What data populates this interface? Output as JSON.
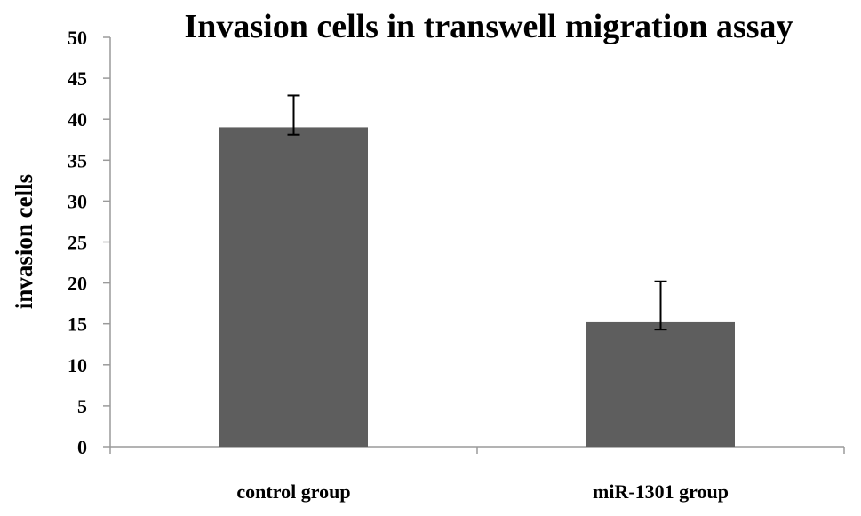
{
  "chart_data": {
    "type": "bar",
    "title": "Invasion cells in transwell migration assay",
    "xlabel": "",
    "ylabel": "invasion cells",
    "ylim": [
      0,
      50
    ],
    "ytick_step": 5,
    "y_ticks": [
      "0",
      "5",
      "10",
      "15",
      "20",
      "25",
      "30",
      "35",
      "40",
      "45",
      "50"
    ],
    "categories": [
      "control group",
      "miR-1301 group"
    ],
    "values": [
      39,
      15.3
    ],
    "error_upper": [
      42.9,
      20.2
    ],
    "error_lower": [
      38.1,
      14.3
    ],
    "grid": false,
    "legend": "none",
    "bar_color": "#5e5e5e",
    "axis_color": "#9a9a9a",
    "errorbar_color": "#000000"
  }
}
